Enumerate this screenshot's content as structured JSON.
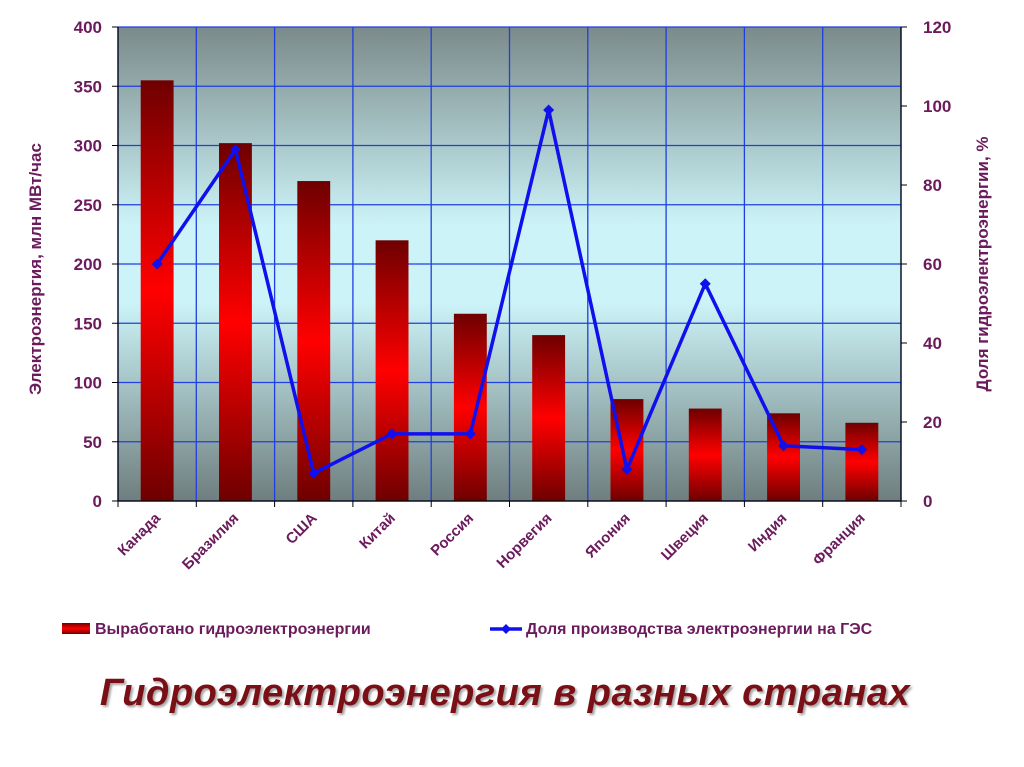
{
  "chart_data": {
    "type": "bar",
    "title": "Гидроэлектроэнергия в разных странах",
    "categories": [
      "Канада",
      "Бразилия",
      "США",
      "Китай",
      "Россия",
      "Норвегия",
      "Япония",
      "Швеция",
      "Индия",
      "Франция"
    ],
    "series": [
      {
        "name": "Выработано гидроэлектроэнергии",
        "type": "bar",
        "axis": "left",
        "values": [
          355,
          302,
          270,
          220,
          158,
          140,
          86,
          78,
          74,
          66
        ]
      },
      {
        "name": "Доля производства электроэнергии на ГЭС",
        "type": "line",
        "axis": "right",
        "values": [
          60,
          89,
          7,
          17,
          17,
          99,
          8,
          55,
          14,
          13
        ]
      }
    ],
    "ylabel": "Электроэнергия, млн МВт/час",
    "ylim": [
      0,
      400
    ],
    "yticks": [
      "0",
      "50",
      "100",
      "150",
      "200",
      "250",
      "300",
      "350",
      "400"
    ],
    "y2label": "Доля гидроэлектроэнергии, %",
    "y2lim": [
      0,
      120
    ],
    "y2ticks": [
      "0",
      "20",
      "40",
      "60",
      "80",
      "100",
      "120"
    ],
    "grid": true,
    "legend_position": "bottom",
    "colors": {
      "bar": "#ff0000",
      "bar_dark": "#6e0000",
      "line": "#1010ee",
      "axis_text": "#6b1a5c",
      "grid": "#1f3fe0",
      "plot_top": "#7b8a8a",
      "plot_mid": "#ccf4f8",
      "plot_bottom": "#6f7e7e"
    }
  }
}
